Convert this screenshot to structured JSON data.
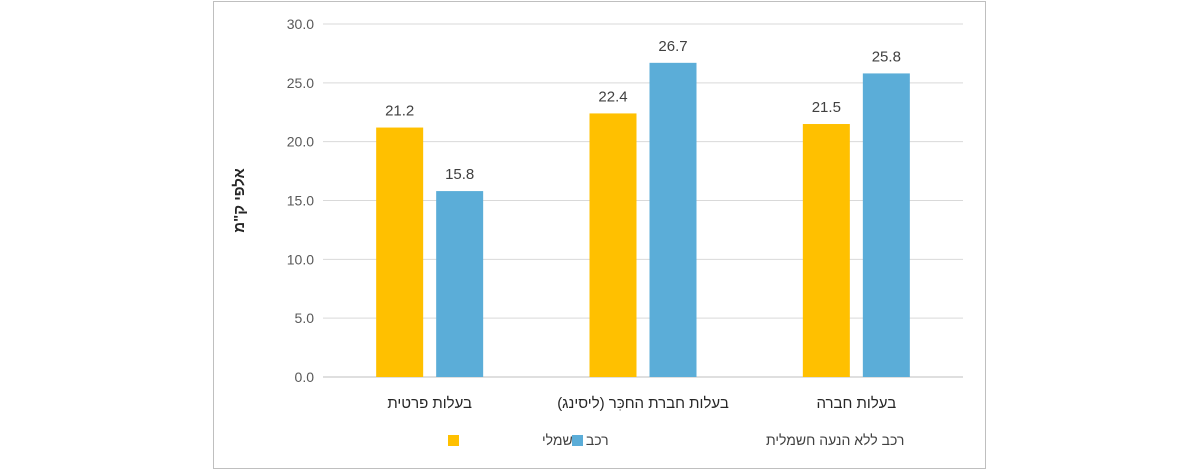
{
  "chart_data": {
    "type": "bar",
    "title": "",
    "xlabel": "",
    "ylabel": "אלפי ק\"מ",
    "ylim": [
      0,
      30
    ],
    "yticks": [
      "0.0",
      "5.0",
      "10.0",
      "15.0",
      "20.0",
      "25.0",
      "30.0"
    ],
    "categories": [
      "בעלות פרטית",
      "בעלות חברת החכִּר (ליסינג)",
      "בעלות חברה"
    ],
    "series": [
      {
        "name": "רכב חשמלי",
        "color": "#FFC000",
        "values": [
          21.2,
          22.4,
          21.5
        ]
      },
      {
        "name": "רכב ללא הנעה חשמלית",
        "color": "#5BADD8",
        "values": [
          15.8,
          26.7,
          25.8
        ]
      }
    ],
    "grid": true,
    "legend": "bottom",
    "data_labels": [
      "21.2",
      "22.4",
      "21.5",
      "15.8",
      "26.7",
      "25.8"
    ]
  }
}
